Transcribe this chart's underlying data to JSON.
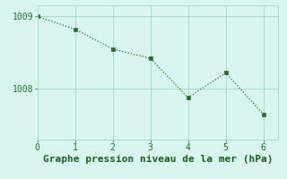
{
  "x": [
    0,
    1,
    2,
    3,
    4,
    5,
    6
  ],
  "y": [
    1009.0,
    1008.82,
    1008.55,
    1008.42,
    1007.88,
    1008.22,
    1007.65
  ],
  "line_color": "#2d6a2d",
  "marker_color": "#2d6a2d",
  "background_color": "#d8f5f0",
  "grid_color": "#b0d8d0",
  "xlabel": "Graphe pression niveau de la mer (hPa)",
  "xlabel_color": "#1a5c1a",
  "yticks": [
    1008,
    1009
  ],
  "xticks": [
    0,
    1,
    2,
    3,
    4,
    5,
    6
  ],
  "ylim": [
    1007.3,
    1009.15
  ],
  "xlim": [
    0.0,
    6.4
  ],
  "tick_color": "#2d6a2d",
  "xlabel_fontsize": 8,
  "tick_fontsize": 7
}
